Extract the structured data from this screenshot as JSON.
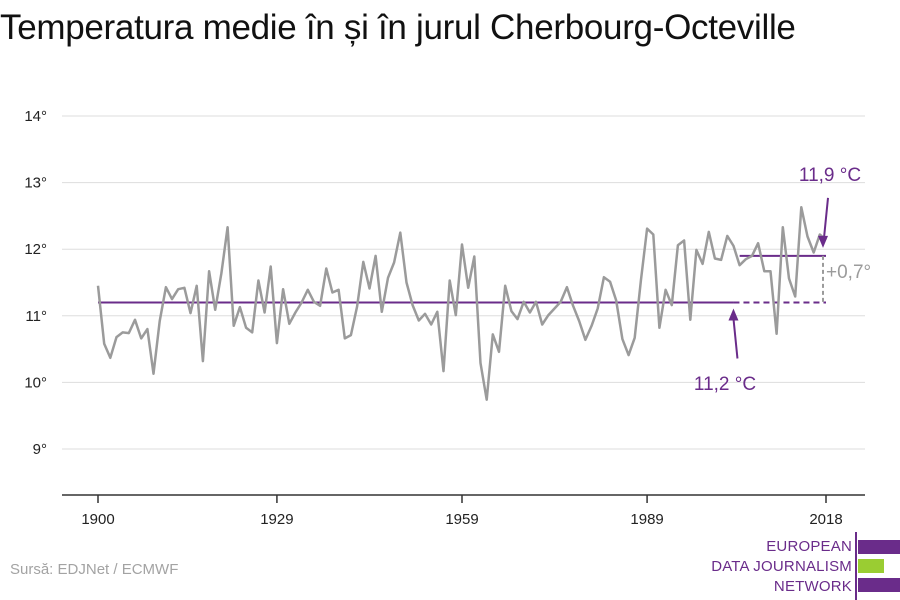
{
  "title": "Temperatura medie în și în jurul Cherbourg-Octeville",
  "source": "Sursă: EDJNet / ECMWF",
  "logo": {
    "lines": [
      "EUROPEAN",
      "DATA JOURNALISM",
      "NETWORK"
    ],
    "purple": "#6a2c8a",
    "green": "#9acd32"
  },
  "chart_data": {
    "type": "line",
    "title": "Temperatura medie în și în jurul Cherbourg-Octeville",
    "xlabel": "",
    "ylabel": "",
    "xlim": [
      1900,
      2018
    ],
    "ylim": [
      8.3,
      14.3
    ],
    "xticks": [
      1900,
      1929,
      1959,
      1989,
      2018
    ],
    "xtick_labels": [
      "1900",
      "1929",
      "1959",
      "1989",
      "2018"
    ],
    "yticks": [
      9,
      10,
      11,
      12,
      13,
      14
    ],
    "ytick_labels": [
      "9°",
      "10°",
      "11°",
      "12°",
      "13°",
      "14°"
    ],
    "grid": true,
    "series": [
      {
        "color": "#9b9b9b",
        "x": [
          1900,
          1901,
          1902,
          1903,
          1904,
          1905,
          1906,
          1907,
          1908,
          1909,
          1910,
          1911,
          1912,
          1913,
          1914,
          1915,
          1916,
          1917,
          1918,
          1919,
          1920,
          1921,
          1922,
          1923,
          1924,
          1925,
          1926,
          1927,
          1928,
          1929,
          1930,
          1931,
          1932,
          1933,
          1934,
          1935,
          1936,
          1937,
          1938,
          1939,
          1940,
          1941,
          1942,
          1943,
          1944,
          1945,
          1946,
          1947,
          1948,
          1949,
          1950,
          1951,
          1952,
          1953,
          1954,
          1955,
          1956,
          1957,
          1958,
          1959,
          1960,
          1961,
          1962,
          1963,
          1964,
          1965,
          1966,
          1967,
          1968,
          1969,
          1970,
          1971,
          1972,
          1973,
          1974,
          1975,
          1976,
          1977,
          1978,
          1979,
          1980,
          1981,
          1982,
          1983,
          1984,
          1985,
          1986,
          1987,
          1988,
          1989,
          1990,
          1991,
          1992,
          1993,
          1994,
          1995,
          1996,
          1997,
          1998,
          1999,
          2000,
          2001,
          2002,
          2003,
          2004,
          2005,
          2006,
          2007,
          2008,
          2009,
          2010,
          2011,
          2012,
          2013,
          2014,
          2015,
          2016,
          2017,
          2018
        ],
        "y": [
          11.45,
          10.58,
          10.37,
          10.68,
          10.75,
          10.74,
          10.94,
          10.66,
          10.8,
          10.13,
          10.92,
          11.43,
          11.25,
          11.4,
          11.42,
          11.04,
          11.45,
          10.32,
          11.67,
          11.09,
          11.64,
          12.33,
          10.85,
          11.13,
          10.82,
          10.75,
          11.53,
          11.05,
          11.74,
          10.59,
          11.4,
          10.88,
          11.05,
          11.2,
          11.39,
          11.21,
          11.15,
          11.71,
          11.35,
          11.39,
          10.66,
          10.71,
          11.14,
          11.81,
          11.41,
          11.9,
          11.06,
          11.57,
          11.8,
          12.25,
          11.5,
          11.16,
          10.93,
          11.03,
          10.87,
          11.06,
          10.17,
          11.53,
          11.01,
          12.07,
          11.42,
          11.89,
          10.29,
          9.74,
          10.72,
          10.46,
          11.45,
          11.07,
          10.95,
          11.21,
          11.05,
          11.21,
          10.87,
          11.01,
          11.11,
          11.21,
          11.43,
          11.15,
          10.92,
          10.64,
          10.85,
          11.11,
          11.58,
          11.51,
          11.23,
          10.65,
          10.41,
          10.67,
          11.53,
          12.31,
          12.22,
          10.82,
          11.39,
          11.16,
          12.06,
          12.13,
          10.94,
          11.99,
          11.78,
          12.26,
          11.86,
          11.84,
          12.2,
          12.05,
          11.76,
          11.85,
          11.9,
          12.09,
          11.67,
          11.67,
          10.73,
          12.33,
          11.56,
          11.29,
          12.63,
          12.19,
          11.95,
          12.22,
          12.14
        ]
      }
    ],
    "reference_lines": [
      {
        "label": "11,2 °C",
        "value": 11.2,
        "color": "#6a2c8a"
      },
      {
        "label": "11,9 °C",
        "value": 11.9,
        "color": "#6a2c8a"
      }
    ],
    "difference_label": "+0,7°"
  }
}
